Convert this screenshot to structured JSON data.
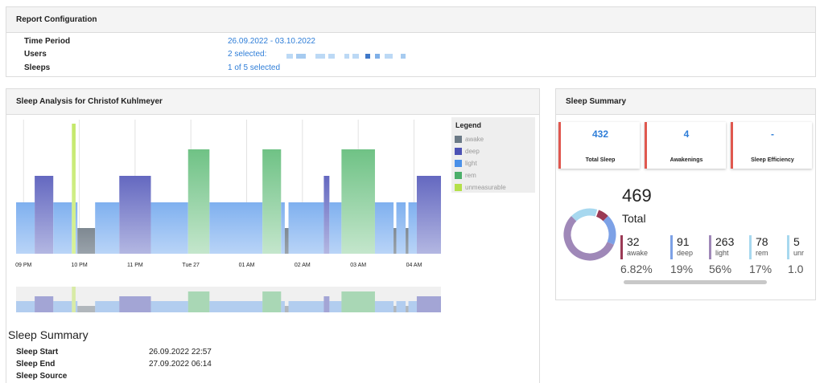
{
  "config": {
    "title": "Report Configuration",
    "rows": [
      {
        "label": "Time Period",
        "value": "26.09.2022 - 03.10.2022"
      },
      {
        "label": "Users",
        "value": "2 selected:"
      },
      {
        "label": "Sleeps",
        "value": "1 of 5 selected"
      }
    ]
  },
  "analysis": {
    "title": "Sleep Analysis for Christof Kuhlmeyer",
    "legend_title": "Legend",
    "legend": [
      {
        "label": "awake",
        "color": "#6b7a86"
      },
      {
        "label": "deep",
        "color": "#4c52b4"
      },
      {
        "label": "light",
        "color": "#4a90e8"
      },
      {
        "label": "rem",
        "color": "#4caf6a"
      },
      {
        "label": "unmeasurable",
        "color": "#b4e04a"
      }
    ],
    "summary_title": "Sleep Summary",
    "summary_rows": [
      {
        "label": "Sleep Start",
        "value": "26.09.2022 22:57"
      },
      {
        "label": "Sleep End",
        "value": "27.09.2022 06:14"
      },
      {
        "label": "Sleep Source",
        "value": ""
      }
    ]
  },
  "chart_data": {
    "type": "bar",
    "x_ticks": [
      "09 PM",
      "10 PM",
      "11 PM",
      "Tue 27",
      "01 AM",
      "02 AM",
      "03 AM",
      "04 AM"
    ],
    "stage_levels": {
      "awake": 1,
      "light": 2,
      "deep": 3,
      "rem": 4,
      "unmeasurable": 5
    },
    "segments": [
      {
        "stage": "light",
        "start": "20:52",
        "end": "21:12"
      },
      {
        "stage": "deep",
        "start": "21:12",
        "end": "21:32"
      },
      {
        "stage": "light",
        "start": "21:32",
        "end": "21:52"
      },
      {
        "stage": "unmeasurable",
        "start": "21:52",
        "end": "21:56"
      },
      {
        "stage": "light",
        "start": "21:56",
        "end": "21:58"
      },
      {
        "stage": "awake",
        "start": "21:58",
        "end": "22:17"
      },
      {
        "stage": "light",
        "start": "22:17",
        "end": "22:43"
      },
      {
        "stage": "deep",
        "start": "22:43",
        "end": "23:17"
      },
      {
        "stage": "light",
        "start": "23:17",
        "end": "23:57"
      },
      {
        "stage": "rem",
        "start": "23:57",
        "end": "00:20"
      },
      {
        "stage": "light",
        "start": "00:20",
        "end": "01:17"
      },
      {
        "stage": "rem",
        "start": "01:17",
        "end": "01:37"
      },
      {
        "stage": "light",
        "start": "01:37",
        "end": "01:41"
      },
      {
        "stage": "awake",
        "start": "01:41",
        "end": "01:45"
      },
      {
        "stage": "light",
        "start": "01:45",
        "end": "02:23"
      },
      {
        "stage": "deep",
        "start": "02:23",
        "end": "02:29"
      },
      {
        "stage": "light",
        "start": "02:29",
        "end": "02:42"
      },
      {
        "stage": "rem",
        "start": "02:42",
        "end": "03:18"
      },
      {
        "stage": "light",
        "start": "03:18",
        "end": "03:38"
      },
      {
        "stage": "awake",
        "start": "03:38",
        "end": "03:41"
      },
      {
        "stage": "light",
        "start": "03:41",
        "end": "03:51"
      },
      {
        "stage": "awake",
        "start": "03:51",
        "end": "03:54"
      },
      {
        "stage": "light",
        "start": "03:54",
        "end": "04:03"
      },
      {
        "stage": "deep",
        "start": "04:03",
        "end": "04:29"
      }
    ]
  },
  "summary": {
    "title": "Sleep Summary",
    "cards": [
      {
        "value": "432",
        "label": "Total Sleep"
      },
      {
        "value": "4",
        "label": "Awakenings"
      },
      {
        "value": "-",
        "label": "Sleep Efficiency"
      }
    ],
    "total_value": "469",
    "total_label": "Total",
    "stats": [
      {
        "value": "32",
        "label": "awake",
        "pct": "6.82%",
        "color": "#9b3a55",
        "share": 0.0682
      },
      {
        "value": "91",
        "label": "deep",
        "pct": "19%",
        "color": "#7da1e6",
        "share": 0.19
      },
      {
        "value": "263",
        "label": "light",
        "pct": "56%",
        "color": "#9f88b8",
        "share": 0.56
      },
      {
        "value": "78",
        "label": "rem",
        "pct": "17%",
        "color": "#a7d8ef",
        "share": 0.17
      },
      {
        "value": "5",
        "label": "unr",
        "pct": "1.0",
        "color": "#a7d8ef",
        "share": 0.01
      }
    ]
  }
}
